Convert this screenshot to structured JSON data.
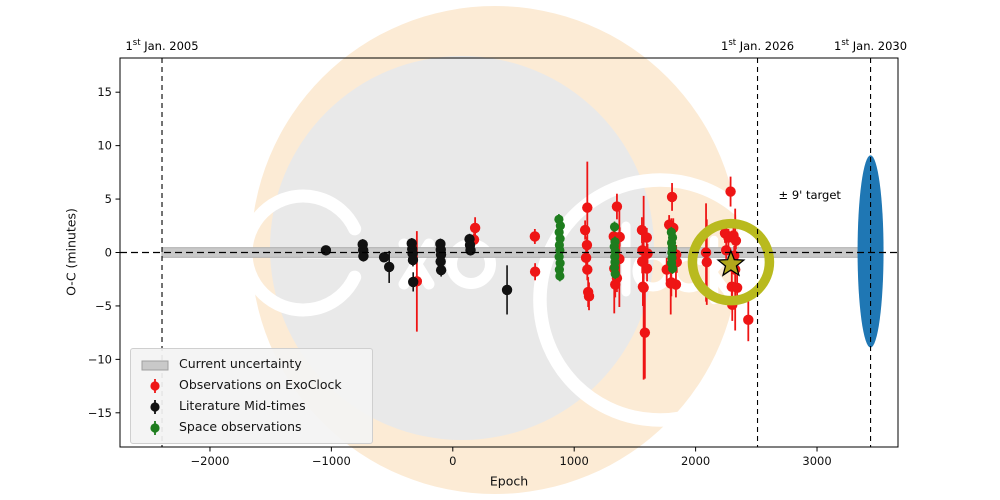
{
  "watermark": {
    "outer_color": "#fcebd5",
    "inner_color": "#e9e9e9",
    "glyph_color": "#ffffff",
    "logo": "ExoClock"
  },
  "chart_data": {
    "type": "scatter",
    "title": "",
    "xlabel": "Epoch",
    "ylabel": "O-C (minutes)",
    "xlim": [
      -2741,
      3667
    ],
    "ylim": [
      -18.2,
      18.2
    ],
    "grid": false,
    "legend_position": "lower left",
    "xticks": [
      -2000,
      -1000,
      0,
      1000,
      2000,
      3000
    ],
    "xtick_labels": [
      "−2000",
      "−1000",
      "0",
      "1000",
      "2000",
      "3000"
    ],
    "yticks": [
      -15,
      -10,
      -5,
      0,
      5,
      10,
      15
    ],
    "ytick_labels": [
      "−15",
      "−10",
      "−5",
      "0",
      "5",
      "10",
      "15"
    ],
    "zero_line": 0,
    "uncertainty_band": {
      "label": "Current uncertainty",
      "x0": -2395,
      "x1": 3441,
      "half_width_minutes": 0.45,
      "color": "#c9c9c9",
      "edge_color": "#aeaeae"
    },
    "vlines": [
      {
        "id": "2005",
        "epoch": -2395,
        "pre": "1",
        "sup": "st",
        "post": " Jan. 2005"
      },
      {
        "id": "2026",
        "epoch": 2510,
        "pre": "1",
        "sup": "st",
        "post": " Jan. 2026"
      },
      {
        "id": "2030",
        "epoch": 3441,
        "pre": "1",
        "sup": "st",
        "post": " Jan. 2030"
      }
    ],
    "series": [
      {
        "id": "exoclock",
        "name": "Observations on ExoClock",
        "color": "#ee1515",
        "marker_radius": 5.2,
        "bar_width": 1.8,
        "points": [
          [
            -296,
            -2.7,
            4.7
          ],
          [
            175,
            1.2,
            0.6
          ],
          [
            184,
            2.3,
            1.0
          ],
          [
            676,
            1.5,
            0.7
          ],
          [
            678,
            -1.8,
            0.8
          ],
          [
            1108,
            4.2,
            4.3
          ],
          [
            1090,
            2.1,
            0.9
          ],
          [
            1105,
            0.7,
            0.8
          ],
          [
            1098,
            -0.5,
            0.9
          ],
          [
            1108,
            -1.6,
            1.0
          ],
          [
            1115,
            -3.7,
            1.4
          ],
          [
            1122,
            -4.1,
            1.3
          ],
          [
            1352,
            4.3,
            1.2
          ],
          [
            1326,
            1.5,
            0.9
          ],
          [
            1375,
            1.45,
            0.9
          ],
          [
            1330,
            -1.5,
            4.2
          ],
          [
            1372,
            -0.6,
            4.5
          ],
          [
            1352,
            -2.4,
            1.3
          ],
          [
            1338,
            -3.0,
            1.2
          ],
          [
            1558,
            2.1,
            1.2
          ],
          [
            1598,
            1.4,
            0.9
          ],
          [
            1562,
            0.2,
            0.8
          ],
          [
            1604,
            -0.1,
            0.9
          ],
          [
            1560,
            -0.85,
            1.1
          ],
          [
            1600,
            -1.5,
            1.2
          ],
          [
            1566,
            -3.2,
            1.8
          ],
          [
            1572,
            -3.3,
            8.6
          ],
          [
            1582,
            -7.5,
            4.3
          ],
          [
            1806,
            5.2,
            1.3
          ],
          [
            1782,
            2.6,
            0.9
          ],
          [
            1800,
            2.4,
            0.8
          ],
          [
            1816,
            2.3,
            0.9
          ],
          [
            1840,
            -0.2,
            0.9
          ],
          [
            1845,
            -0.9,
            1.0
          ],
          [
            1762,
            -1.6,
            1.1
          ],
          [
            1800,
            -2.8,
            1.3
          ],
          [
            1838,
            -3.0,
            1.2
          ],
          [
            1795,
            -2.9,
            2.9
          ],
          [
            2086,
            0.0,
            4.6
          ],
          [
            2092,
            -0.9,
            4.0
          ],
          [
            2288,
            5.7,
            1.4
          ],
          [
            2242,
            1.8,
            0.9
          ],
          [
            2270,
            1.4,
            0.8
          ],
          [
            2312,
            1.6,
            0.9
          ],
          [
            2332,
            1.1,
            0.8
          ],
          [
            2252,
            0.2,
            0.8
          ],
          [
            2318,
            -0.3,
            0.9
          ],
          [
            2326,
            -1.6,
            5.7
          ],
          [
            2298,
            -3.2,
            1.3
          ],
          [
            2342,
            -3.3,
            1.2
          ],
          [
            2302,
            -4.9,
            1.5
          ],
          [
            2434,
            -6.3,
            2.0
          ]
        ]
      },
      {
        "id": "literature",
        "name": "Literature Mid-times",
        "color": "#111111",
        "marker_radius": 5.2,
        "bar_width": 1.6,
        "points": [
          [
            -1045,
            0.2,
            0.3
          ],
          [
            -742,
            0.75,
            0.5
          ],
          [
            -738,
            0.2,
            0.45
          ],
          [
            -736,
            -0.35,
            0.5
          ],
          [
            -566,
            -0.45,
            0.4
          ],
          [
            -524,
            -1.35,
            1.5
          ],
          [
            -338,
            0.85,
            0.5
          ],
          [
            -334,
            0.3,
            0.45
          ],
          [
            -331,
            -0.1,
            0.45
          ],
          [
            -328,
            -0.7,
            0.6
          ],
          [
            -326,
            -2.75,
            0.9
          ],
          [
            -102,
            0.8,
            0.5
          ],
          [
            -99,
            0.25,
            0.45
          ],
          [
            -97,
            -0.2,
            0.45
          ],
          [
            -100,
            -0.85,
            0.5
          ],
          [
            -96,
            -1.65,
            0.6
          ],
          [
            138,
            1.25,
            0.5
          ],
          [
            142,
            0.7,
            0.45
          ],
          [
            146,
            0.2,
            0.45
          ],
          [
            447,
            -3.5,
            2.3
          ]
        ]
      },
      {
        "id": "space",
        "name": "Space observations",
        "color": "#1e7d1e",
        "marker_radius": 4.6,
        "bar_width": 1.6,
        "points": [
          [
            874,
            3.1,
            0.5
          ],
          [
            886,
            2.5,
            0.5
          ],
          [
            876,
            1.9,
            0.5
          ],
          [
            884,
            1.3,
            0.5
          ],
          [
            878,
            0.7,
            0.5
          ],
          [
            882,
            0.2,
            0.5
          ],
          [
            876,
            -0.4,
            0.5
          ],
          [
            884,
            -1.0,
            0.5
          ],
          [
            878,
            -1.6,
            0.5
          ],
          [
            882,
            -2.2,
            0.5
          ],
          [
            1332,
            2.4,
            0.5
          ],
          [
            1336,
            1.0,
            0.5
          ],
          [
            1330,
            0.55,
            0.5
          ],
          [
            1338,
            0.1,
            0.5
          ],
          [
            1334,
            -0.4,
            0.5
          ],
          [
            1336,
            -0.9,
            0.5
          ],
          [
            1332,
            -1.4,
            0.5
          ],
          [
            1338,
            -2.0,
            0.5
          ],
          [
            1800,
            1.9,
            0.5
          ],
          [
            1810,
            1.4,
            0.5
          ],
          [
            1802,
            0.9,
            0.5
          ],
          [
            1808,
            0.45,
            0.5
          ],
          [
            1804,
            0.0,
            0.5
          ],
          [
            1806,
            -0.5,
            0.5
          ],
          [
            1802,
            -1.0,
            0.5
          ],
          [
            1810,
            -1.5,
            0.5
          ]
        ]
      }
    ],
    "future_window_ellipse": {
      "epoch": 3441,
      "oc": 0.1,
      "width_epochs": 214,
      "height_minutes": 18.0,
      "color": "#1f77b4"
    },
    "highlight_ring": {
      "epoch": 2291,
      "oc": -0.9,
      "radius_px": 38.5,
      "stroke_px": 9.5,
      "color": "#b9ba1e"
    },
    "next_observation_star": {
      "epoch": 2291,
      "oc": -1.1,
      "fill": "#b2a71c",
      "edge": "#000000"
    },
    "target_annotation": {
      "text": "± 9' target",
      "epoch": 2940,
      "oc": 5.4
    }
  },
  "legend": {
    "items": [
      {
        "id": "uncertainty",
        "marker": "band",
        "color": "#c9c9c9",
        "edge": "#9f9f9f",
        "label": "Current uncertainty"
      },
      {
        "id": "exoclock",
        "marker": "errorbar",
        "color": "#ee1515",
        "label": "Observations on ExoClock"
      },
      {
        "id": "literature",
        "marker": "errorbar",
        "color": "#111111",
        "label": "Literature Mid-times"
      },
      {
        "id": "space",
        "marker": "errorbar",
        "color": "#1e7d1e",
        "label": "Space observations"
      }
    ]
  }
}
